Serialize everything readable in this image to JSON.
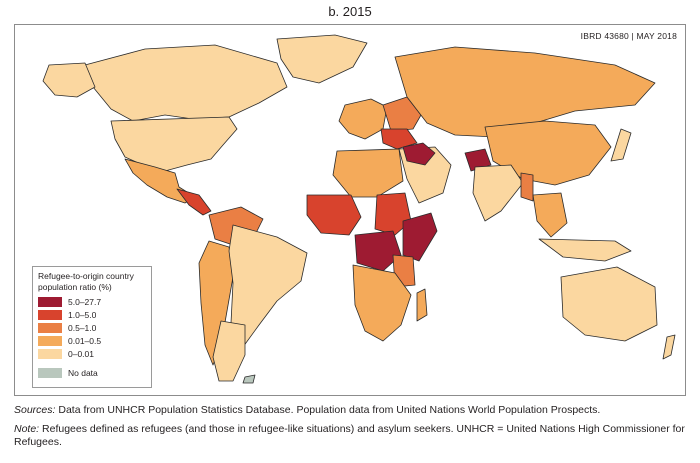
{
  "title": "b. 2015",
  "map": {
    "stamp": "IBRD 43680 | MAY 2018",
    "colors": {
      "ocean": "#ffffff",
      "border": "#2b2b2b",
      "very_low": "#fbd7a0",
      "low": "#f4aa5a",
      "medium": "#ea7f44",
      "high": "#d8432d",
      "very_high": "#9e1b32",
      "no_data": "#b9c7bd"
    }
  },
  "legend": {
    "title": "Refugee-to-origin country population ratio (%)",
    "items": [
      {
        "label": "5.0–27.7",
        "color": "#9e1b32"
      },
      {
        "label": "1.0–5.0",
        "color": "#d8432d"
      },
      {
        "label": "0.5–1.0",
        "color": "#ea7f44"
      },
      {
        "label": "0.01–0.5",
        "color": "#f4aa5a"
      },
      {
        "label": "0–0.01",
        "color": "#fbd7a0"
      }
    ],
    "no_data": {
      "label": "No data",
      "color": "#b9c7bd"
    }
  },
  "notes": {
    "sources_label": "Sources:",
    "sources_text": " Data from UNHCR Population Statistics Database. Population data from United Nations World Population Prospects.",
    "note_label": "Note:",
    "note_text": " Refugees defined as refugees (and those in refugee-like situations) and asylum seekers. UNHCR = United Nations High Commissioner for Refugees."
  }
}
